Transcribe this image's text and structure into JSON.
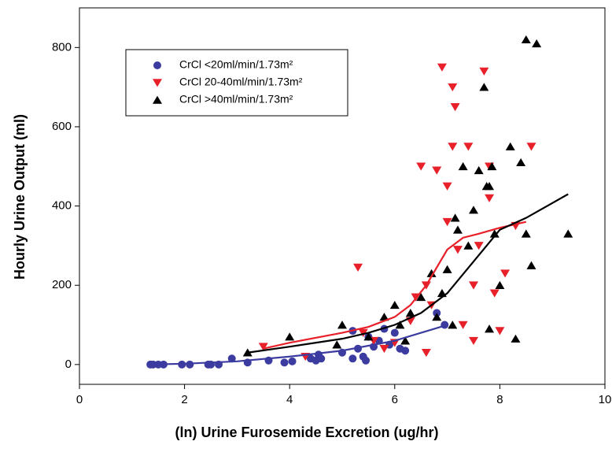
{
  "chart_data": {
    "type": "scatter",
    "xlabel": "(ln) Urine Furosemide Excretion (ug/hr)",
    "ylabel": "Hourly Urine Output (ml)",
    "xlim": [
      0,
      10
    ],
    "ylim": [
      -50,
      900
    ],
    "xticks": [
      0,
      2,
      4,
      6,
      8,
      10
    ],
    "yticks": [
      0,
      200,
      400,
      600,
      800
    ],
    "legend": "upper left",
    "series": [
      {
        "name": "CrCl <20ml/min/1.73m²",
        "color": "#3b3ba0",
        "marker": "circle",
        "x": [
          1.35,
          1.4,
          1.5,
          1.6,
          1.95,
          2.1,
          2.45,
          2.5,
          2.65,
          2.9,
          3.2,
          3.6,
          3.9,
          4.05,
          4.4,
          4.5,
          4.55,
          4.6,
          5.0,
          5.2,
          5.2,
          5.3,
          5.4,
          5.45,
          5.5,
          5.6,
          5.7,
          5.8,
          5.9,
          6.0,
          6.1,
          6.2,
          6.8,
          6.95
        ],
        "values": [
          0,
          0,
          0,
          0,
          0,
          0,
          0,
          0,
          0,
          15,
          5,
          10,
          5,
          8,
          15,
          10,
          25,
          15,
          30,
          85,
          15,
          40,
          20,
          10,
          70,
          45,
          60,
          90,
          50,
          80,
          40,
          35,
          130,
          100
        ]
      },
      {
        "name": "CrCl 20-40ml/min/1.73m²",
        "color": "#e8202a",
        "marker": "triangle-down",
        "x": [
          3.5,
          4.3,
          5.3,
          5.4,
          5.6,
          5.8,
          6.0,
          6.3,
          6.4,
          6.5,
          6.6,
          6.6,
          6.7,
          6.8,
          6.9,
          7.0,
          7.0,
          7.1,
          7.1,
          7.15,
          7.2,
          7.3,
          7.4,
          7.5,
          7.5,
          7.6,
          7.7,
          7.8,
          7.8,
          7.9,
          8.0,
          8.1,
          8.3,
          8.6
        ],
        "values": [
          45,
          20,
          245,
          80,
          60,
          40,
          55,
          110,
          170,
          500,
          200,
          30,
          150,
          490,
          750,
          360,
          450,
          550,
          700,
          650,
          290,
          100,
          550,
          200,
          60,
          300,
          740,
          420,
          500,
          180,
          85,
          230,
          350,
          550
        ]
      },
      {
        "name": "CrCl >40ml/min/1.73m²",
        "color": "#000000",
        "marker": "triangle-up",
        "x": [
          3.2,
          4.0,
          4.9,
          5.0,
          5.5,
          5.8,
          6.0,
          6.1,
          6.2,
          6.3,
          6.5,
          6.7,
          6.8,
          6.9,
          7.0,
          7.1,
          7.15,
          7.2,
          7.3,
          7.4,
          7.5,
          7.6,
          7.7,
          7.75,
          7.8,
          7.8,
          7.85,
          7.9,
          8.0,
          8.2,
          8.3,
          8.4,
          8.5,
          8.5,
          8.6,
          8.7,
          9.3
        ],
        "values": [
          30,
          70,
          50,
          100,
          70,
          120,
          150,
          100,
          60,
          130,
          170,
          230,
          120,
          180,
          240,
          100,
          370,
          340,
          500,
          300,
          390,
          490,
          700,
          450,
          450,
          90,
          500,
          330,
          200,
          550,
          65,
          510,
          330,
          820,
          250,
          810,
          330
        ]
      }
    ],
    "trend_lines": [
      {
        "color": "#3b3ba0",
        "x": [
          1.3,
          2,
          3,
          4,
          5,
          6,
          6.5,
          7
        ],
        "values": [
          0,
          2,
          8,
          20,
          35,
          60,
          80,
          100
        ]
      },
      {
        "color": "#e8202a",
        "x": [
          3.5,
          4,
          5,
          5.5,
          6,
          6.3,
          6.6,
          7,
          7.3,
          7.6,
          8,
          8.5
        ],
        "values": [
          40,
          55,
          80,
          95,
          120,
          150,
          200,
          290,
          320,
          330,
          345,
          360
        ]
      },
      {
        "color": "#000000",
        "x": [
          3.2,
          4,
          5,
          5.5,
          6,
          6.5,
          7,
          7.5,
          8,
          8.5,
          9.3
        ],
        "values": [
          30,
          45,
          65,
          80,
          100,
          130,
          180,
          260,
          340,
          370,
          430
        ]
      }
    ]
  }
}
